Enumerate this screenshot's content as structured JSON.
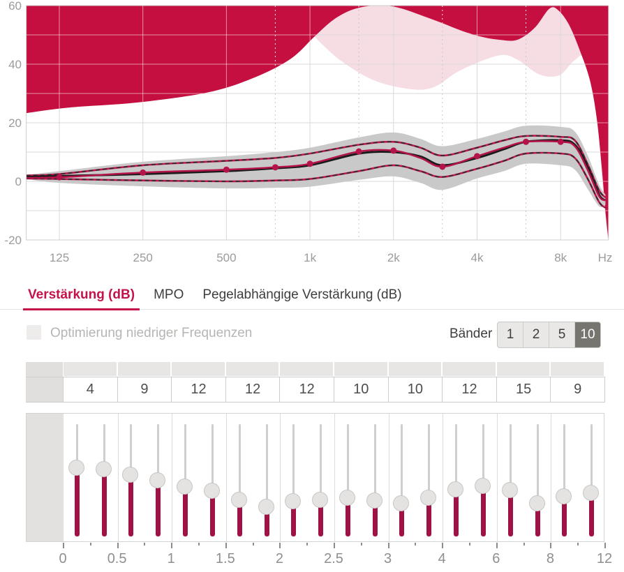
{
  "tabs": {
    "items": [
      {
        "id": "gain",
        "label": "Verstärkung (dB)",
        "active": true
      },
      {
        "id": "mpo",
        "label": "MPO",
        "active": false
      },
      {
        "id": "level-dependent-gain",
        "label": "Pegelabhängige Verstärkung (dB)",
        "active": false
      }
    ]
  },
  "options": {
    "low_freq_opt_label": "Optimierung niedriger Frequenzen",
    "checked": false
  },
  "bands_control": {
    "label": "Bänder",
    "options": [
      "1",
      "2",
      "5",
      "10"
    ],
    "selected": "10"
  },
  "band_values": [
    "4",
    "9",
    "12",
    "12",
    "12",
    "10",
    "10",
    "12",
    "15",
    "9"
  ],
  "slider_axis_labels": [
    "0",
    "0.5",
    "1",
    "1.5",
    "2",
    "2.5",
    "3",
    "4",
    "6",
    "8",
    "12"
  ],
  "slider_positions_pct": [
    39.1,
    39.8,
    45.3,
    49.7,
    55.3,
    59.6,
    67.1,
    73.3,
    68.9,
    67.1,
    65.8,
    68.3,
    70.8,
    65.8,
    57.8,
    54.7,
    59.0,
    70.8,
    64.0,
    60.9
  ],
  "colors": {
    "accent_red": "#c3134a",
    "limit_fill": "#c50f40",
    "tolerance_fill": "#f6dce3",
    "band_fill": "#c9c9c9",
    "target_red": "#b5134b",
    "response_black": "#1b1b1b",
    "slider_bar": "#a01245",
    "grid": "#d9d9d9",
    "axis_text": "#9b9b9b"
  },
  "chart_data": {
    "type": "line",
    "title": "",
    "xlabel": "Hz",
    "ylabel": "",
    "xlim": [
      95,
      11900
    ],
    "ylim": [
      -20,
      60
    ],
    "y_grid_step": 10,
    "x_ticks": [
      [
        125,
        "125"
      ],
      [
        250,
        "250"
      ],
      [
        500,
        "500"
      ],
      [
        1000,
        "1k"
      ],
      [
        2000,
        "2k"
      ],
      [
        4000,
        "4k"
      ],
      [
        8000,
        "8k"
      ]
    ],
    "x_dotted": [
      750,
      1500,
      3000,
      6000
    ],
    "y_ticks": [
      60,
      40,
      20,
      0,
      -20
    ],
    "areas": {
      "limit_region": {
        "name": "output-limit-region",
        "color": "#c50f40",
        "boundary": [
          [
            95,
            23.3
          ],
          [
            135,
            25.2
          ],
          [
            243,
            27
          ],
          [
            435,
            30.5
          ],
          [
            640,
            35.7
          ],
          [
            857,
            42
          ],
          [
            1040,
            49.5
          ],
          [
            1230,
            55.5
          ],
          [
            1465,
            59
          ],
          [
            1800,
            60.5
          ],
          [
            2140,
            59
          ],
          [
            2630,
            56
          ],
          [
            3000,
            54
          ],
          [
            3520,
            51.4
          ],
          [
            4170,
            49.3
          ],
          [
            4830,
            48.3
          ],
          [
            5580,
            48.3
          ],
          [
            6450,
            52.4
          ],
          [
            7300,
            59
          ],
          [
            7860,
            58.3
          ],
          [
            8560,
            53.6
          ],
          [
            9340,
            45.2
          ],
          [
            10200,
            34.5
          ],
          [
            10800,
            21.4
          ],
          [
            11250,
            4.8
          ],
          [
            11650,
            -12
          ],
          [
            11900,
            -20
          ]
        ]
      },
      "limit_tolerance": {
        "name": "limit-tolerance-band",
        "color": "#f6dce3",
        "top_from_f": 1040,
        "bottom": [
          [
            1040,
            49.5
          ],
          [
            1100,
            47
          ],
          [
            1300,
            41
          ],
          [
            1700,
            34.5
          ],
          [
            2300,
            31.5
          ],
          [
            2800,
            32.2
          ],
          [
            3500,
            38
          ],
          [
            4800,
            43
          ],
          [
            5600,
            41.5
          ],
          [
            6700,
            36.5
          ],
          [
            7900,
            36.2
          ],
          [
            8900,
            41
          ],
          [
            9800,
            43
          ],
          [
            10500,
            35
          ],
          [
            10900,
            21
          ],
          [
            11300,
            0
          ],
          [
            11800,
            -19
          ]
        ]
      },
      "confidence_band": {
        "name": "gain-confidence-band",
        "color": "#c9c9c9",
        "upper": [
          [
            95,
            2.2
          ],
          [
            125,
            3.5
          ],
          [
            250,
            6.7
          ],
          [
            500,
            8.6
          ],
          [
            750,
            10
          ],
          [
            1000,
            11.5
          ],
          [
            1500,
            15
          ],
          [
            2000,
            16.7
          ],
          [
            2500,
            14.5
          ],
          [
            3000,
            12
          ],
          [
            4000,
            14.5
          ],
          [
            5000,
            17
          ],
          [
            6000,
            19
          ],
          [
            8000,
            18.6
          ],
          [
            9000,
            17
          ],
          [
            10000,
            9
          ],
          [
            11000,
            -1
          ],
          [
            11600,
            -4.5
          ]
        ],
        "lower": [
          [
            95,
            0.8
          ],
          [
            125,
            -0.5
          ],
          [
            250,
            -1.7
          ],
          [
            500,
            -2.4
          ],
          [
            750,
            -2.2
          ],
          [
            1000,
            -1.8
          ],
          [
            1500,
            0.5
          ],
          [
            2000,
            1.7
          ],
          [
            2500,
            -0.5
          ],
          [
            3000,
            -2.9
          ],
          [
            4000,
            1
          ],
          [
            5000,
            3.5
          ],
          [
            6000,
            6
          ],
          [
            8000,
            5.5
          ],
          [
            9000,
            4
          ],
          [
            10000,
            -2.5
          ],
          [
            11000,
            -8.5
          ],
          [
            11600,
            -8
          ]
        ]
      }
    },
    "series": [
      {
        "name": "target-upper-tolerance",
        "style": "dashed",
        "color": "#2e2e2e",
        "underlay": "#c2154d",
        "points": [
          [
            95,
            2
          ],
          [
            125,
            2.5
          ],
          [
            250,
            5.5
          ],
          [
            500,
            7
          ],
          [
            750,
            8
          ],
          [
            1000,
            9.5
          ],
          [
            1500,
            12.5
          ],
          [
            2000,
            13.5
          ],
          [
            2500,
            11.5
          ],
          [
            3000,
            8.8
          ],
          [
            4000,
            11.5
          ],
          [
            5000,
            14
          ],
          [
            6000,
            15.5
          ],
          [
            8000,
            15.2
          ],
          [
            9000,
            14
          ],
          [
            10000,
            6
          ],
          [
            11000,
            -3
          ],
          [
            11600,
            -5.5
          ]
        ]
      },
      {
        "name": "target-lower-tolerance",
        "style": "dashed",
        "color": "#2e2e2e",
        "underlay": "#c2154d",
        "points": [
          [
            95,
            1
          ],
          [
            125,
            0.8
          ],
          [
            250,
            0.3
          ],
          [
            500,
            0
          ],
          [
            750,
            0.3
          ],
          [
            1000,
            0.8
          ],
          [
            1500,
            3.5
          ],
          [
            2000,
            5.5
          ],
          [
            2500,
            3.5
          ],
          [
            3000,
            1.5
          ],
          [
            4000,
            4.3
          ],
          [
            5000,
            7
          ],
          [
            6000,
            9.5
          ],
          [
            8000,
            9.5
          ],
          [
            9000,
            8
          ],
          [
            10000,
            1
          ],
          [
            11000,
            -7
          ],
          [
            11600,
            -9
          ]
        ]
      },
      {
        "name": "measured-response",
        "style": "solid",
        "color": "#1b1b1b",
        "width": 3,
        "points": [
          [
            95,
            1.5
          ],
          [
            125,
            1.8
          ],
          [
            250,
            2.5
          ],
          [
            500,
            3.5
          ],
          [
            750,
            4.5
          ],
          [
            1000,
            5.5
          ],
          [
            1500,
            9.5
          ],
          [
            2000,
            10
          ],
          [
            2500,
            8.5
          ],
          [
            3000,
            5.5
          ],
          [
            4000,
            8
          ],
          [
            5000,
            11
          ],
          [
            6000,
            13.5
          ],
          [
            8000,
            14
          ],
          [
            9000,
            12.5
          ],
          [
            10000,
            5
          ],
          [
            11000,
            -4.5
          ],
          [
            11600,
            -6.5
          ]
        ]
      },
      {
        "name": "target-gain",
        "style": "solid",
        "color": "#b5134b",
        "width": 2.5,
        "markers": [
          125,
          250,
          500,
          750,
          1000,
          1500,
          2000,
          3000,
          4000,
          6000,
          8000
        ],
        "points": [
          [
            95,
            1.2
          ],
          [
            125,
            1.4
          ],
          [
            250,
            3
          ],
          [
            500,
            4
          ],
          [
            750,
            4.8
          ],
          [
            1000,
            6
          ],
          [
            1500,
            10.2
          ],
          [
            2000,
            10.5
          ],
          [
            2500,
            8
          ],
          [
            3000,
            5
          ],
          [
            4000,
            8.6
          ],
          [
            5000,
            11.5
          ],
          [
            6000,
            13.5
          ],
          [
            8000,
            13.5
          ],
          [
            9000,
            12
          ],
          [
            10000,
            4
          ],
          [
            11000,
            -5
          ],
          [
            11600,
            -6.5
          ]
        ]
      }
    ]
  }
}
